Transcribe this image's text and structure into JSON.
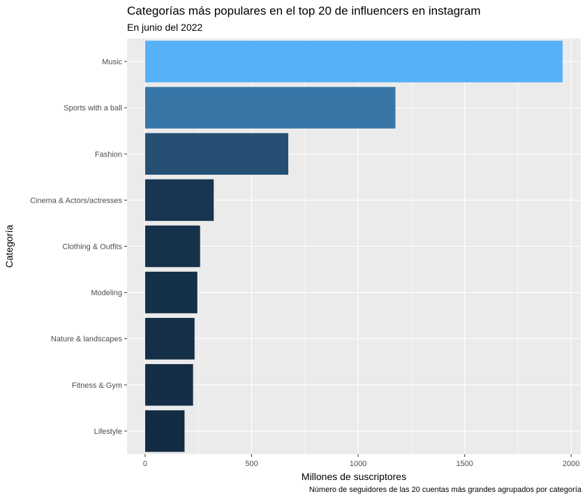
{
  "chart_data": {
    "type": "bar",
    "orientation": "horizontal",
    "title": "Categorías más populares en el top 20 de influencers en instagram",
    "subtitle": "En junio del 2022",
    "caption": "Número de seguidores de las 20 cuentas más grandes agrupados por categoría",
    "xlabel": "Millones de suscriptores",
    "ylabel": "Categoría",
    "categories": [
      "Music",
      "Sports with a ball",
      "Fashion",
      "Cinema & Actors/actresses",
      "Clothing & Outfits",
      "Modeling",
      "Nature & landscapes",
      "Fitness & Gym",
      "Lifestyle"
    ],
    "values": [
      1960,
      1175,
      672,
      322,
      258,
      245,
      232,
      225,
      185
    ],
    "xlim": [
      -85,
      2045
    ],
    "xticks": [
      0,
      500,
      1000,
      1500,
      2000
    ],
    "grid": true,
    "color_scale": {
      "low": "#132B43",
      "high": "#56B1F7"
    }
  }
}
